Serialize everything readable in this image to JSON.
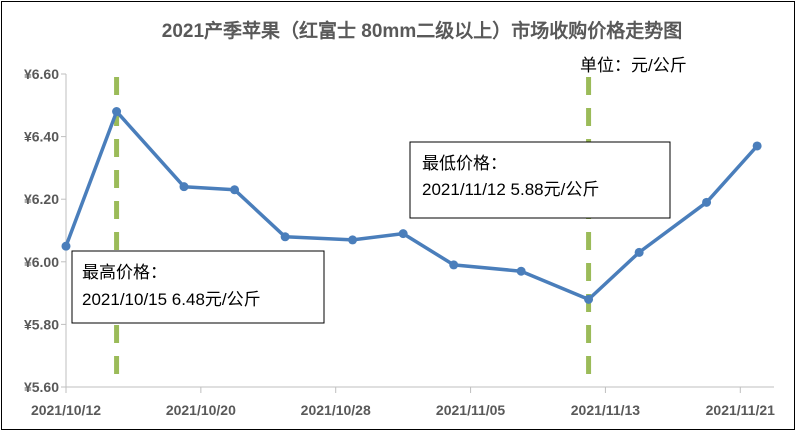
{
  "chart_data": {
    "type": "line",
    "title": "2021产季苹果（红富士 80mm二级以上）市场收购价格走势图",
    "unit_label": "单位：元/公斤",
    "xlabel": "",
    "ylabel": "",
    "ylim": [
      5.6,
      6.6
    ],
    "y_ticks": [
      "¥5.60",
      "¥5.80",
      "¥6.00",
      "¥6.20",
      "¥6.40",
      "¥6.60"
    ],
    "y_tick_values": [
      5.6,
      5.8,
      6.0,
      6.2,
      6.4,
      6.6
    ],
    "x_tick_labels": [
      "2021/10/12",
      "2021/10/20",
      "2021/10/28",
      "2021/11/05",
      "2021/11/13",
      "2021/11/21"
    ],
    "x_tick_dates": [
      "2021-10-12",
      "2021-10-20",
      "2021-10-28",
      "2021-11-05",
      "2021-11-13",
      "2021-11-21"
    ],
    "x_range": [
      "2021-10-12",
      "2021-11-23"
    ],
    "grid": false,
    "legend": "none",
    "series": [
      {
        "color": "#4a7ebb",
        "x": [
          "2021-10-12",
          "2021-10-15",
          "2021-10-19",
          "2021-10-22",
          "2021-10-25",
          "2021-10-29",
          "2021-11-01",
          "2021-11-04",
          "2021-11-08",
          "2021-11-12",
          "2021-11-15",
          "2021-11-19",
          "2021-11-22"
        ],
        "y": [
          6.05,
          6.48,
          6.24,
          6.23,
          6.08,
          6.07,
          6.09,
          5.99,
          5.97,
          5.88,
          6.03,
          6.19,
          6.37
        ]
      }
    ],
    "markers": [
      {
        "x": "2021-10-15",
        "color": "#9bbb59"
      },
      {
        "x": "2021-11-12",
        "color": "#9bbb59"
      }
    ],
    "annotations": [
      {
        "line1": "最高价格：",
        "line2": "2021/10/15  6.48元/公斤"
      },
      {
        "line1": "最低价格：",
        "line2": "2021/11/12  5.88元/公斤"
      }
    ]
  }
}
